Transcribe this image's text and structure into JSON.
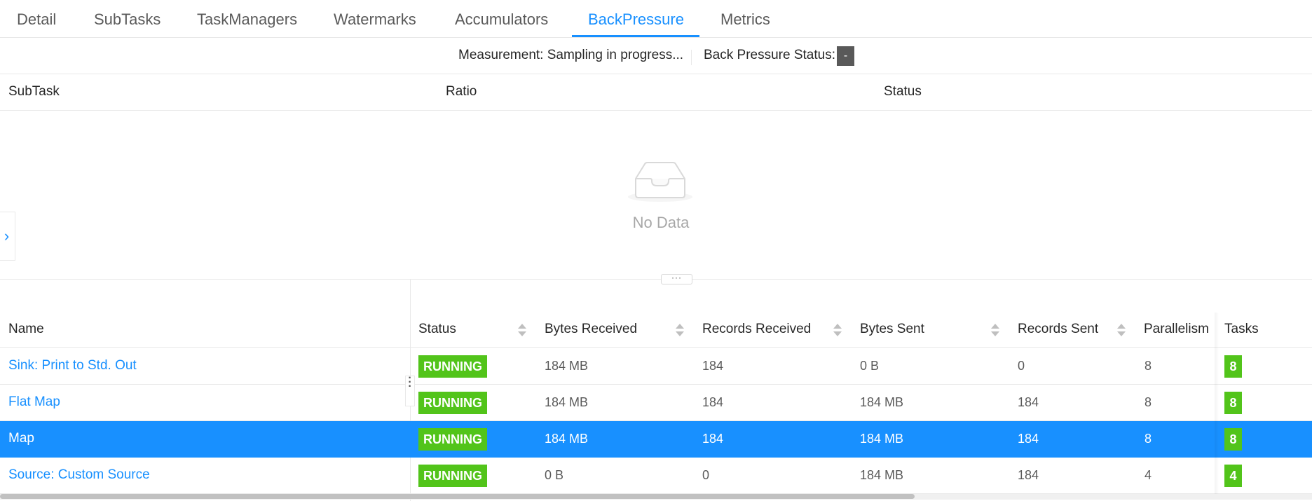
{
  "tabs": [
    {
      "label": "Detail",
      "active": false
    },
    {
      "label": "SubTasks",
      "active": false
    },
    {
      "label": "TaskManagers",
      "active": false
    },
    {
      "label": "Watermarks",
      "active": false
    },
    {
      "label": "Accumulators",
      "active": false
    },
    {
      "label": "BackPressure",
      "active": true
    },
    {
      "label": "Metrics",
      "active": false
    }
  ],
  "measurement": {
    "text": "Measurement: Sampling in progress...",
    "status_label": "Back Pressure Status:",
    "status_value": "-"
  },
  "backpressure_table": {
    "columns": [
      "SubTask",
      "Ratio",
      "Status"
    ],
    "empty_text": "No Data"
  },
  "splitter": {
    "handle_text": "···"
  },
  "side_toggle": {
    "icon": "chevron-right-icon",
    "glyph": "›"
  },
  "vertex_table": {
    "columns": {
      "name": "Name",
      "status": "Status",
      "bytes_received": "Bytes Received",
      "records_received": "Records Received",
      "bytes_sent": "Bytes Sent",
      "records_sent": "Records Sent",
      "parallelism": "Parallelism",
      "tasks": "Tasks"
    },
    "rows": [
      {
        "name": "Sink: Print to Std. Out",
        "status": "RUNNING",
        "bytes_received": "184 MB",
        "records_received": "184",
        "bytes_sent": "0 B",
        "records_sent": "0",
        "parallelism": "8",
        "tasks": "8",
        "selected": false
      },
      {
        "name": "Flat Map",
        "status": "RUNNING",
        "bytes_received": "184 MB",
        "records_received": "184",
        "bytes_sent": "184 MB",
        "records_sent": "184",
        "parallelism": "8",
        "tasks": "8",
        "selected": false
      },
      {
        "name": "Map",
        "status": "RUNNING",
        "bytes_received": "184 MB",
        "records_received": "184",
        "bytes_sent": "184 MB",
        "records_sent": "184",
        "parallelism": "8",
        "tasks": "8",
        "selected": true
      },
      {
        "name": "Source: Custom Source",
        "status": "RUNNING",
        "bytes_received": "0 B",
        "records_received": "0",
        "bytes_sent": "184 MB",
        "records_sent": "184",
        "parallelism": "4",
        "tasks": "4",
        "selected": false
      }
    ]
  },
  "colors": {
    "accent": "#1890ff",
    "running": "#52c41a",
    "status_dash_bg": "#595959"
  }
}
